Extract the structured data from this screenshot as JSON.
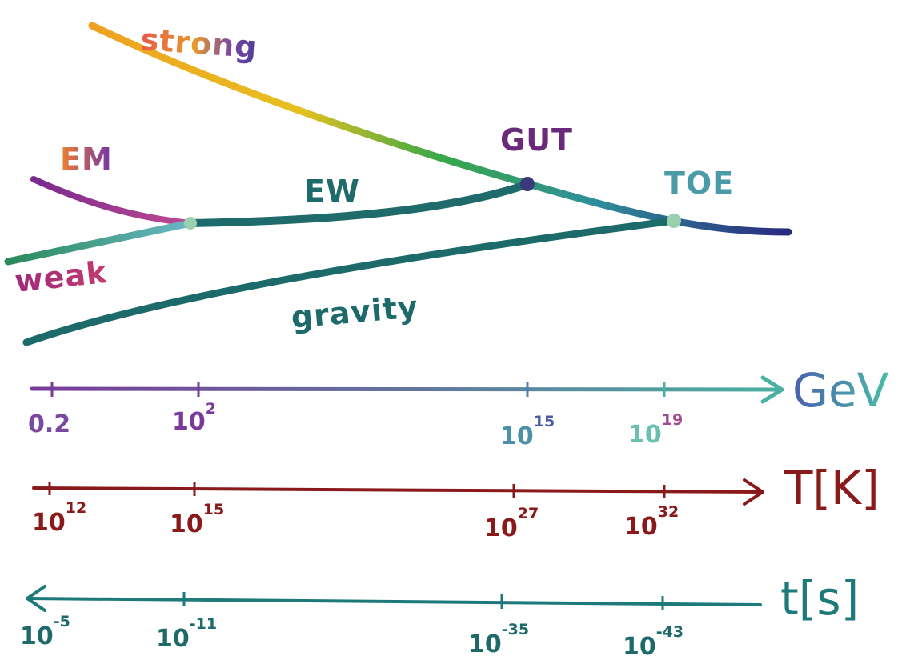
{
  "forces": {
    "strong": "strong",
    "em": "EM",
    "weak": "weak",
    "ew": "EW",
    "gravity": "gravity",
    "gut": "GUT",
    "toe": "TOE"
  },
  "axes": {
    "energy": {
      "unit": "GeV",
      "ticks": [
        {
          "base": "0.2",
          "exp": ""
        },
        {
          "base": "10",
          "exp": "2"
        },
        {
          "base": "10",
          "exp": "15"
        },
        {
          "base": "10",
          "exp": "19"
        }
      ]
    },
    "temperature": {
      "unit": "T[K]",
      "ticks": [
        {
          "base": "10",
          "exp": "12"
        },
        {
          "base": "10",
          "exp": "15"
        },
        {
          "base": "10",
          "exp": "27"
        },
        {
          "base": "10",
          "exp": "32"
        }
      ]
    },
    "time": {
      "unit": "t[s]",
      "ticks": [
        {
          "base": "10",
          "exp": "-5"
        },
        {
          "base": "10",
          "exp": "-11"
        },
        {
          "base": "10",
          "exp": "-35"
        },
        {
          "base": "10",
          "exp": "-43"
        }
      ]
    }
  },
  "colors": {
    "strong_start": "#f0a020",
    "strong_mid1": "#e6c020",
    "strong_mid2": "#38a848",
    "strong_mid3": "#2e8e9a",
    "strong_end": "#2a2a80",
    "em": "#7a2a8e",
    "em_end": "#c04a90",
    "weak": "#2a8a5a",
    "weak_end": "#6ab8c8",
    "ew": "#1f6a6a",
    "gravity": "#1c6a6a",
    "gev_axis_start": "#7a3a9a",
    "gev_axis_end": "#4ab0a0",
    "temp_axis": "#8a1a1a",
    "time_axis": "#1e7a7a",
    "node_light": "#9ad0b0",
    "node_gut": "#3a3a7a"
  }
}
